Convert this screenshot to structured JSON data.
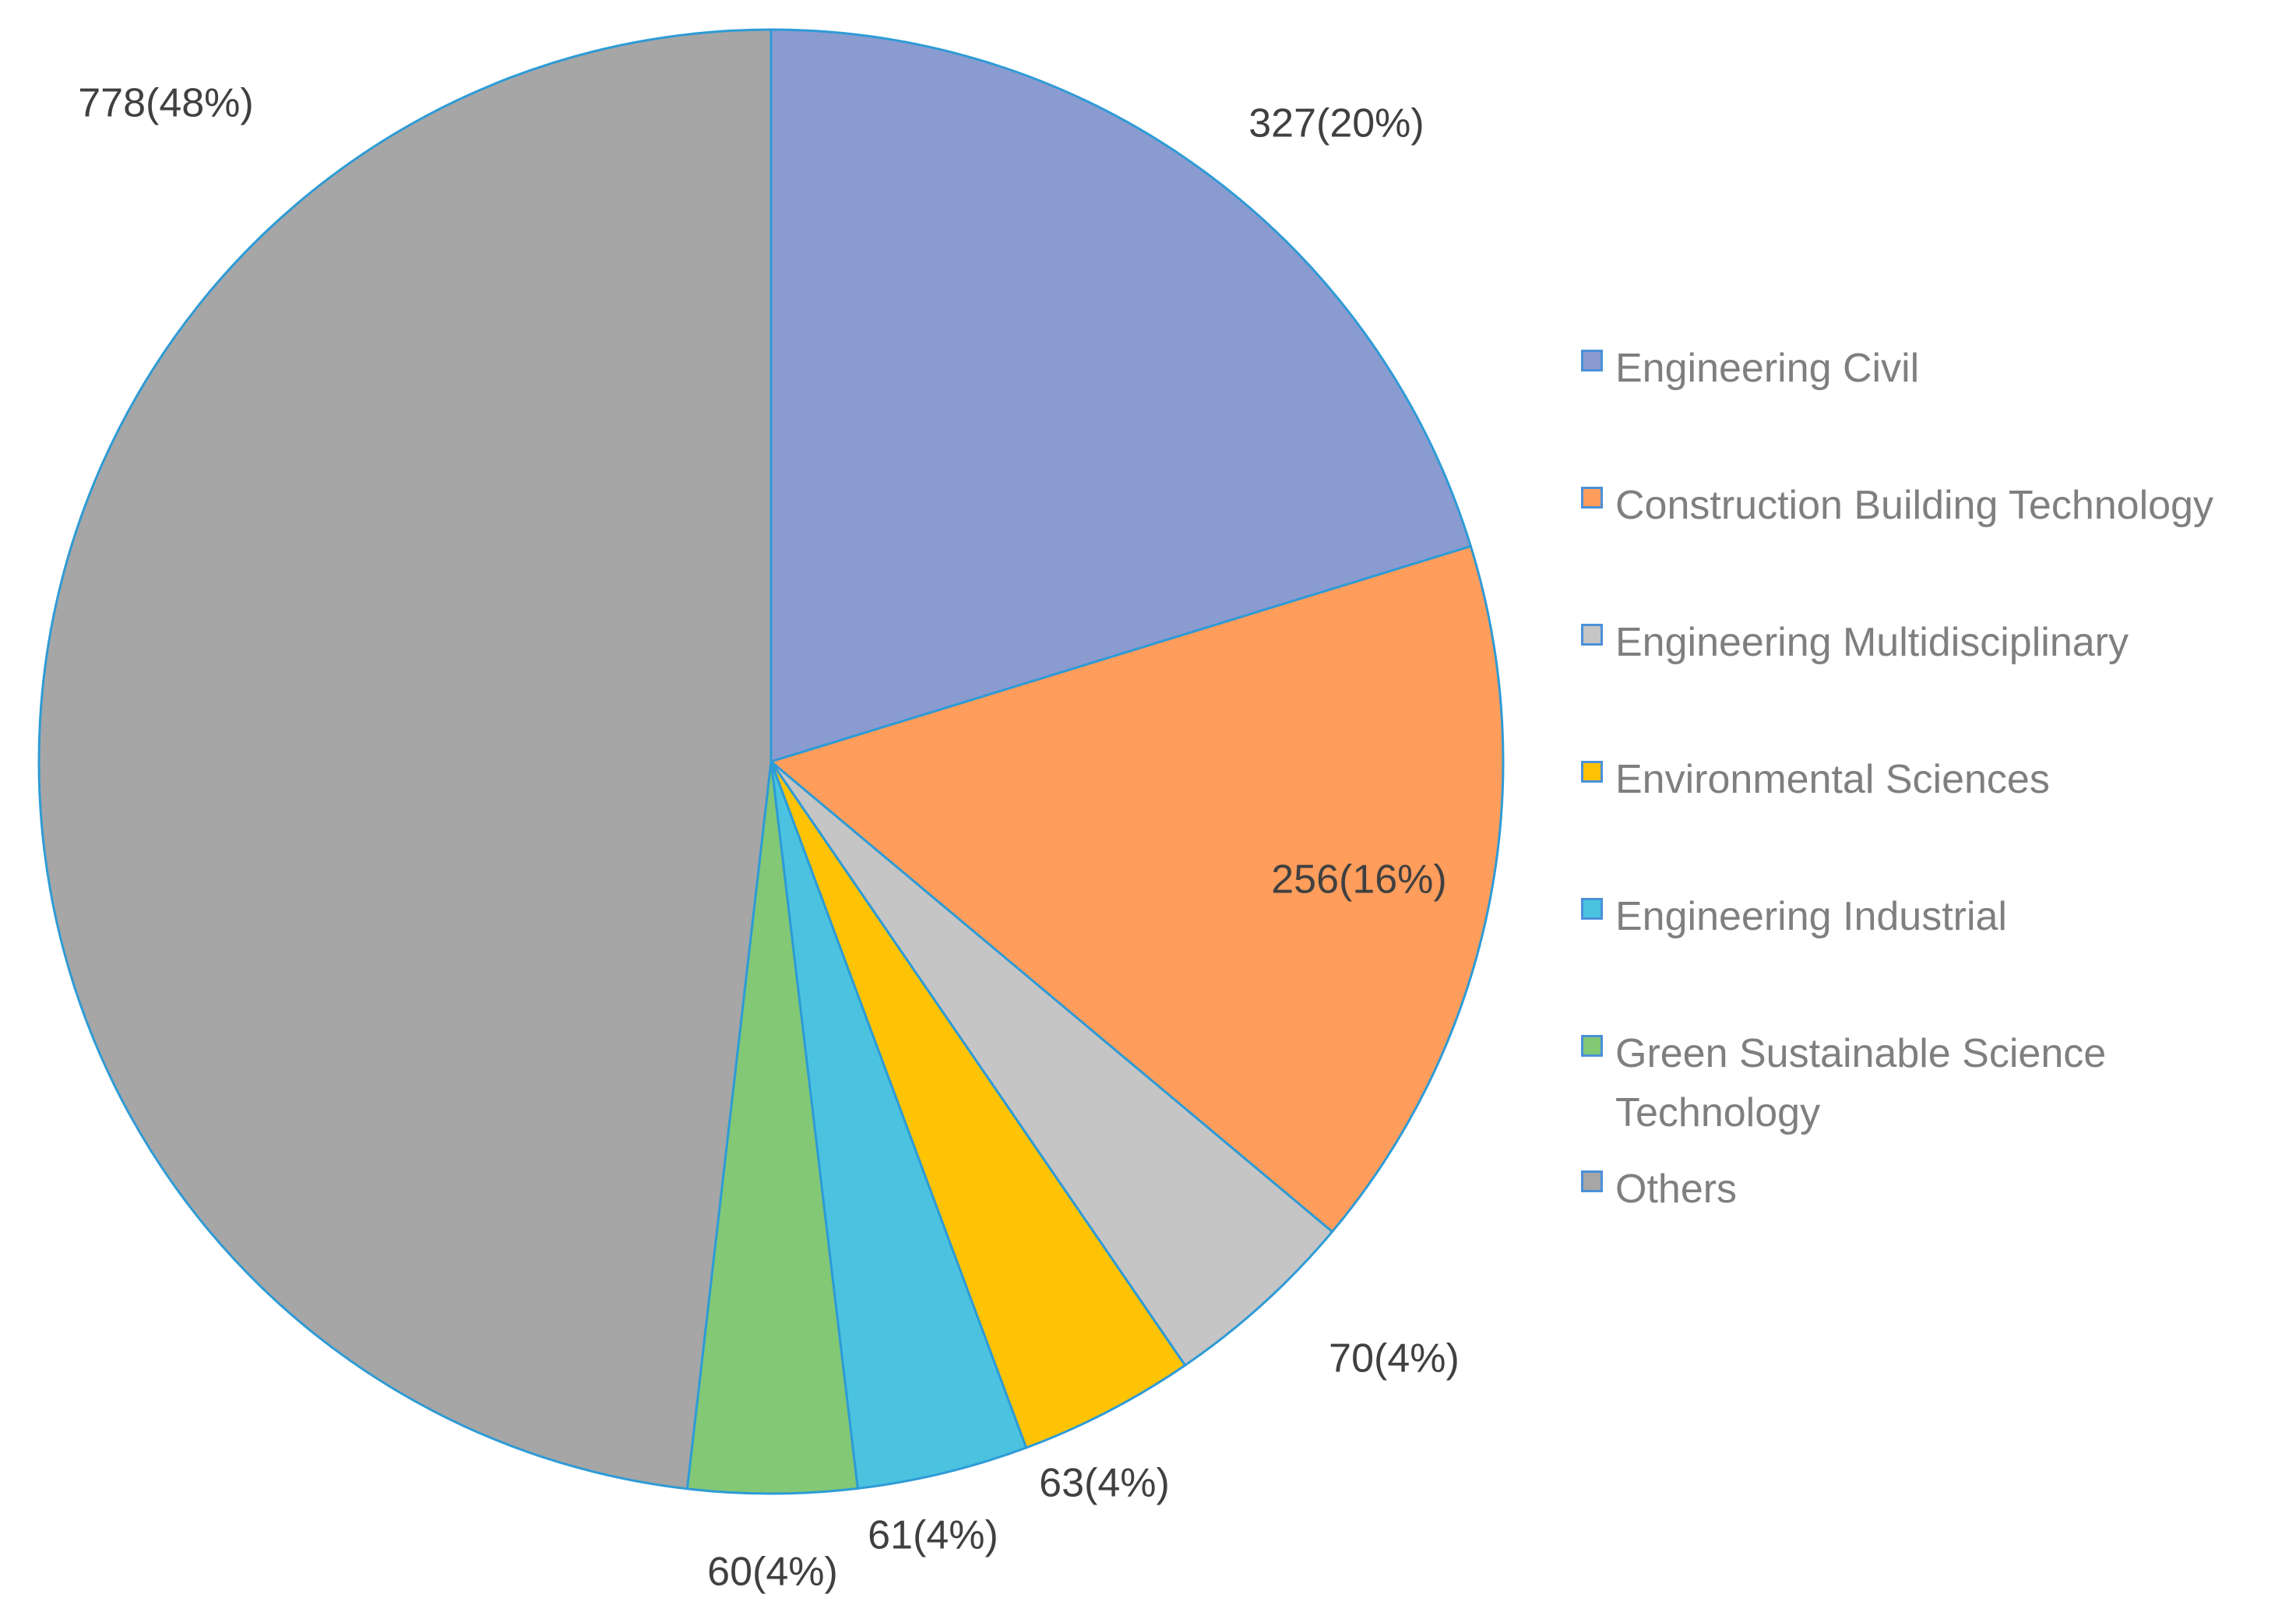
{
  "chart_data": {
    "type": "pie",
    "title": "",
    "start_angle_deg": 0,
    "direction": "clockwise",
    "slice_border_color": "#2e9bd6",
    "slices": [
      {
        "label": "Engineering Civil",
        "value": 327,
        "data_label": "327(20%)",
        "color": "#8a9bd0"
      },
      {
        "label": "Construction Building Technology",
        "value": 256,
        "data_label": "256(16%)",
        "color": "#ff9d5c"
      },
      {
        "label": "Engineering Multidisciplinary",
        "value": 70,
        "data_label": "70(4%)",
        "color": "#c5c5c5"
      },
      {
        "label": "Environmental Sciences",
        "value": 63,
        "data_label": "63(4%)",
        "color": "#ffc305"
      },
      {
        "label": "Engineering Industrial",
        "value": 61,
        "data_label": "61(4%)",
        "color": "#4bc3e0"
      },
      {
        "label": "Green Sustainable Science Technology",
        "value": 60,
        "data_label": "60(4%)",
        "color": "#83c874"
      },
      {
        "label": "Others",
        "value": 778,
        "data_label": "778(48%)",
        "color": "#a6a6a6"
      }
    ],
    "legend_position": "right"
  }
}
